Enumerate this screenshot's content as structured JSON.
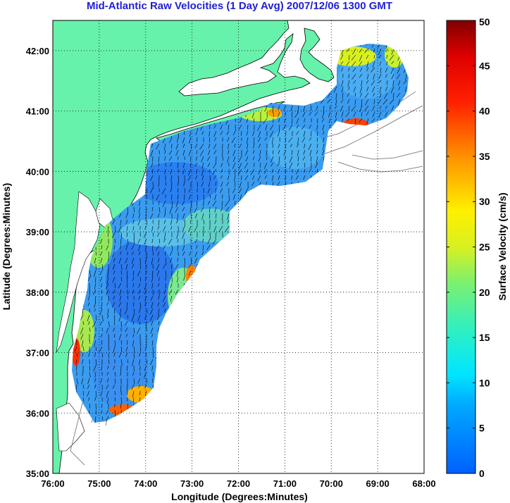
{
  "title": "Mid-Atlantic Raw Velocities (1 Day Avg) 2007/12/06 1300 GMT",
  "map": {
    "xlabel": "Longitude (Degrees:Minutes)",
    "ylabel": "Latitude (Degrees:Minutes)",
    "lon_range": [
      -76,
      -68
    ],
    "lat_range": [
      35,
      42.5
    ],
    "lon_ticks": [
      {
        "value": -76,
        "label": "76:00"
      },
      {
        "value": -75,
        "label": "75:00"
      },
      {
        "value": -74,
        "label": "74:00"
      },
      {
        "value": -73,
        "label": "73:00"
      },
      {
        "value": -72,
        "label": "72:00"
      },
      {
        "value": -71,
        "label": "71:00"
      },
      {
        "value": -70,
        "label": "70:00"
      },
      {
        "value": -69,
        "label": "69:00"
      },
      {
        "value": -68,
        "label": "68:00"
      }
    ],
    "lat_ticks": [
      {
        "value": 35,
        "label": "35:00"
      },
      {
        "value": 36,
        "label": "36:00"
      },
      {
        "value": 37,
        "label": "37:00"
      },
      {
        "value": 38,
        "label": "38:00"
      },
      {
        "value": 39,
        "label": "39:00"
      },
      {
        "value": 40,
        "label": "40:00"
      },
      {
        "value": 41,
        "label": "41:00"
      },
      {
        "value": 42,
        "label": "42:00"
      }
    ],
    "grid": "dotted",
    "land_color": "#66f2aa",
    "ocean_color": "#ffffff"
  },
  "colorbar": {
    "label": "Surface Velocity (cm/s)",
    "min": 0,
    "max": 50,
    "ticks": [
      "0",
      "5",
      "10",
      "15",
      "20",
      "25",
      "30",
      "35",
      "40",
      "45",
      "50"
    ],
    "placement": "right"
  }
}
